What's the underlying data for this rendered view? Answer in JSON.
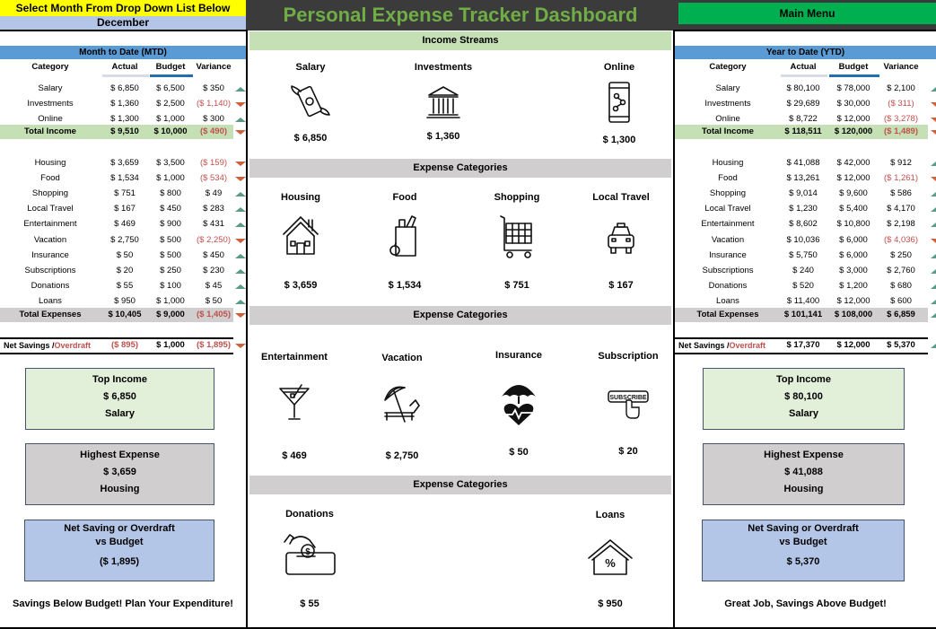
{
  "header": {
    "select_prompt": "Select Month From Drop Down List Below",
    "selected_month": "December",
    "title": "Personal Expense Tracker Dashboard",
    "main_menu": "Main Menu"
  },
  "colors": {
    "title_green": "#70ad47",
    "menu_green": "#00b050",
    "yellow": "#ffff00",
    "section_blue": "#5b9bd5",
    "negative_red": "#c0504d",
    "up_arrow": "#5a9a87",
    "down_arrow": "#d0603a"
  },
  "mtd": {
    "section_title": "Month to Date (MTD)",
    "columns": [
      "Category",
      "Actual",
      "Budget",
      "Variance"
    ],
    "income": [
      {
        "category": "Salary",
        "actual": "$ 6,850",
        "budget": "$ 6,500",
        "variance": "$ 350",
        "trend": "up"
      },
      {
        "category": "Investments",
        "actual": "$ 1,360",
        "budget": "$ 2,500",
        "variance": "($ 1,140)",
        "trend": "down"
      },
      {
        "category": "Online",
        "actual": "$ 1,300",
        "budget": "$ 1,000",
        "variance": "$ 300",
        "trend": "up"
      }
    ],
    "total_income": {
      "category": "Total Income",
      "actual": "$ 9,510",
      "budget": "$ 10,000",
      "variance": "($ 490)",
      "trend": "down"
    },
    "expenses": [
      {
        "category": "Housing",
        "actual": "$ 3,659",
        "budget": "$ 3,500",
        "variance": "($ 159)",
        "trend": "down"
      },
      {
        "category": "Food",
        "actual": "$ 1,534",
        "budget": "$ 1,000",
        "variance": "($ 534)",
        "trend": "down"
      },
      {
        "category": "Shopping",
        "actual": "$ 751",
        "budget": "$ 800",
        "variance": "$ 49",
        "trend": "up"
      },
      {
        "category": "Local Travel",
        "actual": "$ 167",
        "budget": "$ 450",
        "variance": "$ 283",
        "trend": "up"
      },
      {
        "category": "Entertainment",
        "actual": "$ 469",
        "budget": "$ 900",
        "variance": "$ 431",
        "trend": "up"
      },
      {
        "category": "Vacation",
        "actual": "$ 2,750",
        "budget": "$ 500",
        "variance": "($ 2,250)",
        "trend": "down"
      },
      {
        "category": "Insurance",
        "actual": "$ 50",
        "budget": "$ 500",
        "variance": "$ 450",
        "trend": "up"
      },
      {
        "category": "Subscriptions",
        "actual": "$ 20",
        "budget": "$ 250",
        "variance": "$ 230",
        "trend": "up"
      },
      {
        "category": "Donations",
        "actual": "$ 55",
        "budget": "$ 100",
        "variance": "$ 45",
        "trend": "up"
      },
      {
        "category": "Loans",
        "actual": "$ 950",
        "budget": "$ 1,000",
        "variance": "$ 50",
        "trend": "up"
      }
    ],
    "total_expenses": {
      "category": "Total Expenses",
      "actual": "$ 10,405",
      "budget": "$ 9,000",
      "variance": "($ 1,405)",
      "trend": "down"
    },
    "net": {
      "label_a": "Net Savings /",
      "label_b": "Overdraft",
      "actual": "($ 895)",
      "budget": "$ 1,000",
      "variance": "($ 1,895)",
      "trend": "down"
    },
    "cards": {
      "top_income": {
        "title": "Top Income",
        "value": "$ 6,850",
        "name": "Salary"
      },
      "highest_expense": {
        "title": "Highest Expense",
        "value": "$ 3,659",
        "name": "Housing"
      },
      "net_saving": {
        "title_1": "Net Saving or Overdraft",
        "title_2": "vs Budget",
        "value": "($ 1,895)"
      }
    },
    "message": "Savings Below Budget! Plan Your Expenditure!"
  },
  "ytd": {
    "section_title": "Year to Date (YTD)",
    "columns": [
      "Category",
      "Actual",
      "Budget",
      "Variance"
    ],
    "income": [
      {
        "category": "Salary",
        "actual": "$ 80,100",
        "budget": "$ 78,000",
        "variance": "$ 2,100",
        "trend": "up"
      },
      {
        "category": "Investments",
        "actual": "$ 29,689",
        "budget": "$ 30,000",
        "variance": "($ 311)",
        "trend": "down"
      },
      {
        "category": "Online",
        "actual": "$ 8,722",
        "budget": "$ 12,000",
        "variance": "($ 3,278)",
        "trend": "down"
      }
    ],
    "total_income": {
      "category": "Total Income",
      "actual": "$ 118,511",
      "budget": "$ 120,000",
      "variance": "($ 1,489)",
      "trend": "down"
    },
    "expenses": [
      {
        "category": "Housing",
        "actual": "$ 41,088",
        "budget": "$ 42,000",
        "variance": "$ 912",
        "trend": "up"
      },
      {
        "category": "Food",
        "actual": "$ 13,261",
        "budget": "$ 12,000",
        "variance": "($ 1,261)",
        "trend": "down"
      },
      {
        "category": "Shopping",
        "actual": "$ 9,014",
        "budget": "$ 9,600",
        "variance": "$ 586",
        "trend": "up"
      },
      {
        "category": "Local Travel",
        "actual": "$ 1,230",
        "budget": "$ 5,400",
        "variance": "$ 4,170",
        "trend": "up"
      },
      {
        "category": "Entertainment",
        "actual": "$ 8,602",
        "budget": "$ 10,800",
        "variance": "$ 2,198",
        "trend": "up"
      },
      {
        "category": "Vacation",
        "actual": "$ 10,036",
        "budget": "$ 6,000",
        "variance": "($ 4,036)",
        "trend": "down"
      },
      {
        "category": "Insurance",
        "actual": "$ 5,750",
        "budget": "$ 6,000",
        "variance": "$ 250",
        "trend": "up"
      },
      {
        "category": "Subscriptions",
        "actual": "$ 240",
        "budget": "$ 3,000",
        "variance": "$ 2,760",
        "trend": "up"
      },
      {
        "category": "Donations",
        "actual": "$ 520",
        "budget": "$ 1,200",
        "variance": "$ 680",
        "trend": "up"
      },
      {
        "category": "Loans",
        "actual": "$ 11,400",
        "budget": "$ 12,000",
        "variance": "$ 600",
        "trend": "up"
      }
    ],
    "total_expenses": {
      "category": "Total Expenses",
      "actual": "$ 101,141",
      "budget": "$ 108,000",
      "variance": "$ 6,859",
      "trend": "up"
    },
    "net": {
      "label_a": "Net Savings /",
      "label_b": "Overdraft",
      "actual": "$ 17,370",
      "budget": "$ 12,000",
      "variance": "$ 5,370",
      "trend": "up"
    },
    "cards": {
      "top_income": {
        "title": "Top Income",
        "value": "$ 80,100",
        "name": "Salary"
      },
      "highest_expense": {
        "title": "Highest Expense",
        "value": "$ 41,088",
        "name": "Housing"
      },
      "net_saving": {
        "title_1": "Net Saving or Overdraft",
        "title_2": "vs Budget",
        "value": "$ 5,370"
      }
    },
    "message": "Great Job, Savings Above Budget!"
  },
  "center": {
    "income_streams": {
      "title": "Income Streams",
      "items": [
        {
          "label": "Salary",
          "value": "$ 6,850",
          "icon": "flying-money-icon"
        },
        {
          "label": "Investments",
          "value": "$ 1,360",
          "icon": "bank-icon"
        },
        {
          "label": "Online",
          "value": "$ 1,300",
          "icon": "smartphone-icon"
        }
      ]
    },
    "expense_group_1": {
      "title": "Expense Categories",
      "items": [
        {
          "label": "Housing",
          "value": "$ 3,659",
          "icon": "house-icon"
        },
        {
          "label": "Food",
          "value": "$ 1,534",
          "icon": "grocery-bag-icon"
        },
        {
          "label": "Shopping",
          "value": "$ 751",
          "icon": "shopping-cart-icon"
        },
        {
          "label": "Local Travel",
          "value": "$ 167",
          "icon": "taxi-icon"
        }
      ]
    },
    "expense_group_2": {
      "title": "Expense Categories",
      "items": [
        {
          "label": "Entertainment",
          "value": "$ 469",
          "icon": "cocktail-icon"
        },
        {
          "label": "Vacation",
          "value": "$ 2,750",
          "icon": "beach-umbrella-icon"
        },
        {
          "label": "Insurance",
          "value": "$ 50",
          "icon": "health-insurance-icon"
        },
        {
          "label": "Subscription",
          "value": "$ 20",
          "icon": "subscribe-button-icon",
          "icon_text": "SUBSCRIBE"
        }
      ]
    },
    "expense_group_3": {
      "title": "Expense Categories",
      "items": [
        {
          "label": "Donations",
          "value": "$ 55",
          "icon": "donation-box-icon"
        },
        {
          "label": "Loans",
          "value": "$ 950",
          "icon": "mortgage-house-icon"
        }
      ]
    }
  }
}
